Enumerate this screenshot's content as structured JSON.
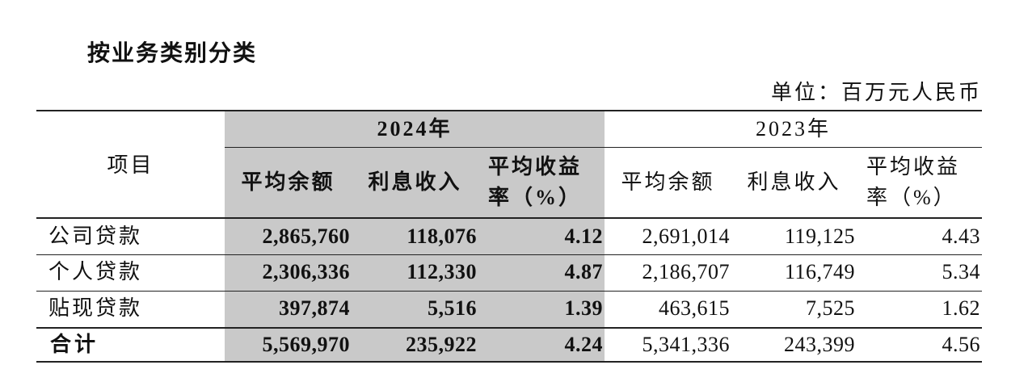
{
  "title": "按业务类别分类",
  "unit": "单位：百万元人民币",
  "table": {
    "item_header": "项目",
    "groups": [
      {
        "year": "2024年",
        "columns": [
          "平均余额",
          "利息收入",
          "平均收益率（%）"
        ]
      },
      {
        "year": "2023年",
        "columns": [
          "平均余额",
          "利息收入",
          "平均收益率（%）"
        ]
      }
    ],
    "rows": [
      {
        "label": "公司贷款",
        "values": [
          "2,865,760",
          "118,076",
          "4.12",
          "2,691,014",
          "119,125",
          "4.43"
        ]
      },
      {
        "label": "个人贷款",
        "values": [
          "2,306,336",
          "112,330",
          "4.87",
          "2,186,707",
          "116,749",
          "5.34"
        ]
      },
      {
        "label": "贴现贷款",
        "values": [
          "397,874",
          "5,516",
          "1.39",
          "463,615",
          "7,525",
          "1.62"
        ]
      },
      {
        "label": "合计",
        "values": [
          "5,569,970",
          "235,922",
          "4.24",
          "5,341,336",
          "243,399",
          "4.56"
        ]
      }
    ]
  }
}
